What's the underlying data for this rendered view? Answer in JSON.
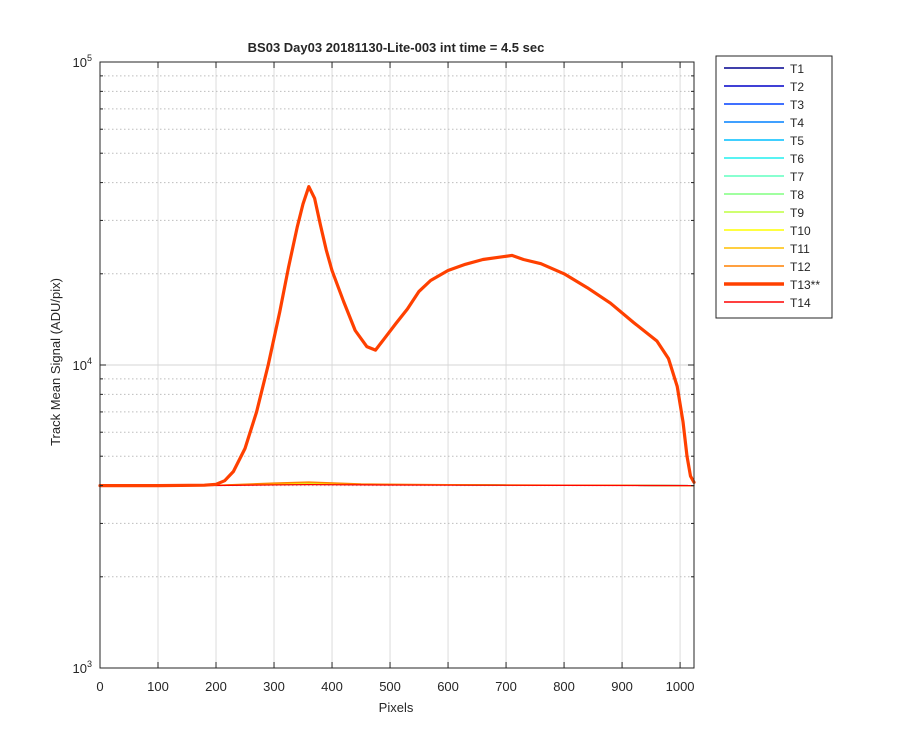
{
  "chart_data": {
    "type": "line",
    "title": "BS03 Day03 20181130-Lite-003 int time = 4.5 sec",
    "xlabel": "Pixels",
    "ylabel": "Track Mean Signal (ADU/pix)",
    "xlim": [
      0,
      1024
    ],
    "ylim": [
      1000,
      100000
    ],
    "yscale": "log",
    "grid": true,
    "legend_position": "outside-right-top",
    "x_ticks": [
      0,
      100,
      200,
      300,
      400,
      500,
      600,
      700,
      800,
      900,
      1000
    ],
    "x_tick_labels": [
      "0",
      "100",
      "200",
      "300",
      "400",
      "500",
      "600",
      "700",
      "800",
      "900",
      "1000"
    ],
    "y_ticks": [
      1000,
      10000,
      100000
    ],
    "y_tick_labels": [
      {
        "base": "10",
        "exp": "3"
      },
      {
        "base": "10",
        "exp": "4"
      },
      {
        "base": "10",
        "exp": "5"
      }
    ],
    "series": [
      {
        "name": "T1",
        "color": "#00008F",
        "width": 1.2,
        "x": [
          0,
          200,
          300,
          360,
          450,
          600,
          800,
          1024
        ],
        "y": [
          4000,
          4005,
          4040,
          4060,
          4030,
          4020,
          4010,
          4000
        ]
      },
      {
        "name": "T2",
        "color": "#0000C8",
        "width": 1.2,
        "x": [
          0,
          200,
          300,
          360,
          450,
          600,
          800,
          1024
        ],
        "y": [
          4000,
          4005,
          4040,
          4060,
          4030,
          4020,
          4010,
          4000
        ]
      },
      {
        "name": "T3",
        "color": "#0040FF",
        "width": 1.2,
        "x": [
          0,
          200,
          300,
          360,
          450,
          600,
          800,
          1024
        ],
        "y": [
          4000,
          4005,
          4040,
          4060,
          4030,
          4020,
          4010,
          4000
        ]
      },
      {
        "name": "T4",
        "color": "#0080FF",
        "width": 1.2,
        "x": [
          0,
          200,
          300,
          360,
          450,
          600,
          800,
          1024
        ],
        "y": [
          4000,
          4005,
          4040,
          4060,
          4030,
          4020,
          4010,
          4000
        ]
      },
      {
        "name": "T5",
        "color": "#00BFFF",
        "width": 1.2,
        "x": [
          0,
          200,
          300,
          360,
          450,
          600,
          800,
          1024
        ],
        "y": [
          4000,
          4005,
          4040,
          4060,
          4030,
          4020,
          4010,
          4000
        ]
      },
      {
        "name": "T6",
        "color": "#20EFEF",
        "width": 1.2,
        "x": [
          0,
          200,
          300,
          360,
          450,
          600,
          800,
          1024
        ],
        "y": [
          4000,
          4005,
          4040,
          4060,
          4030,
          4020,
          4010,
          4000
        ]
      },
      {
        "name": "T7",
        "color": "#60FFC0",
        "width": 1.2,
        "x": [
          0,
          200,
          300,
          360,
          450,
          600,
          800,
          1024
        ],
        "y": [
          4000,
          4005,
          4040,
          4060,
          4030,
          4020,
          4010,
          4000
        ]
      },
      {
        "name": "T8",
        "color": "#80FF80",
        "width": 1.2,
        "x": [
          0,
          200,
          300,
          360,
          450,
          600,
          800,
          1024
        ],
        "y": [
          4000,
          4005,
          4040,
          4060,
          4030,
          4020,
          4010,
          4000
        ]
      },
      {
        "name": "T9",
        "color": "#BFFF40",
        "width": 1.2,
        "x": [
          0,
          200,
          300,
          360,
          450,
          600,
          800,
          1024
        ],
        "y": [
          4000,
          4008,
          4050,
          4080,
          4040,
          4020,
          4010,
          4000
        ]
      },
      {
        "name": "T10",
        "color": "#FFFF00",
        "width": 1.2,
        "x": [
          0,
          200,
          300,
          360,
          450,
          600,
          800,
          1024
        ],
        "y": [
          4000,
          4008,
          4050,
          4080,
          4040,
          4020,
          4010,
          4000
        ]
      },
      {
        "name": "T11",
        "color": "#FFBF00",
        "width": 1.2,
        "x": [
          0,
          200,
          300,
          360,
          450,
          600,
          800,
          1024
        ],
        "y": [
          4000,
          4008,
          4060,
          4090,
          4040,
          4020,
          4010,
          4000
        ]
      },
      {
        "name": "T12",
        "color": "#FF8000",
        "width": 1.2,
        "x": [
          0,
          200,
          300,
          360,
          450,
          600,
          800,
          1024
        ],
        "y": [
          4000,
          4010,
          4080,
          4110,
          4050,
          4030,
          4015,
          4000
        ]
      },
      {
        "name": "T13**",
        "color": "#FF4000",
        "width": 3.2,
        "x": [
          0,
          100,
          180,
          200,
          215,
          230,
          250,
          270,
          290,
          310,
          325,
          340,
          350,
          360,
          370,
          380,
          390,
          400,
          420,
          440,
          460,
          475,
          490,
          510,
          530,
          550,
          570,
          600,
          630,
          660,
          690,
          710,
          730,
          760,
          800,
          840,
          880,
          920,
          960,
          980,
          995,
          1005,
          1012,
          1018,
          1024
        ],
        "y": [
          4000,
          4000,
          4010,
          4040,
          4150,
          4450,
          5300,
          7000,
          10000,
          15000,
          21000,
          28500,
          34000,
          38800,
          35500,
          29000,
          24000,
          20500,
          16200,
          13000,
          11500,
          11200,
          12200,
          13700,
          15300,
          17500,
          19000,
          20500,
          21500,
          22300,
          22700,
          23000,
          22300,
          21600,
          20000,
          18000,
          16000,
          13800,
          12000,
          10500,
          8500,
          6500,
          5000,
          4300,
          4100
        ]
      },
      {
        "name": "T14",
        "color": "#FF0000",
        "width": 1.2,
        "x": [
          0,
          200,
          300,
          360,
          450,
          600,
          800,
          1024
        ],
        "y": [
          4000,
          4003,
          4020,
          4030,
          4020,
          4010,
          4005,
          4000
        ]
      }
    ]
  }
}
